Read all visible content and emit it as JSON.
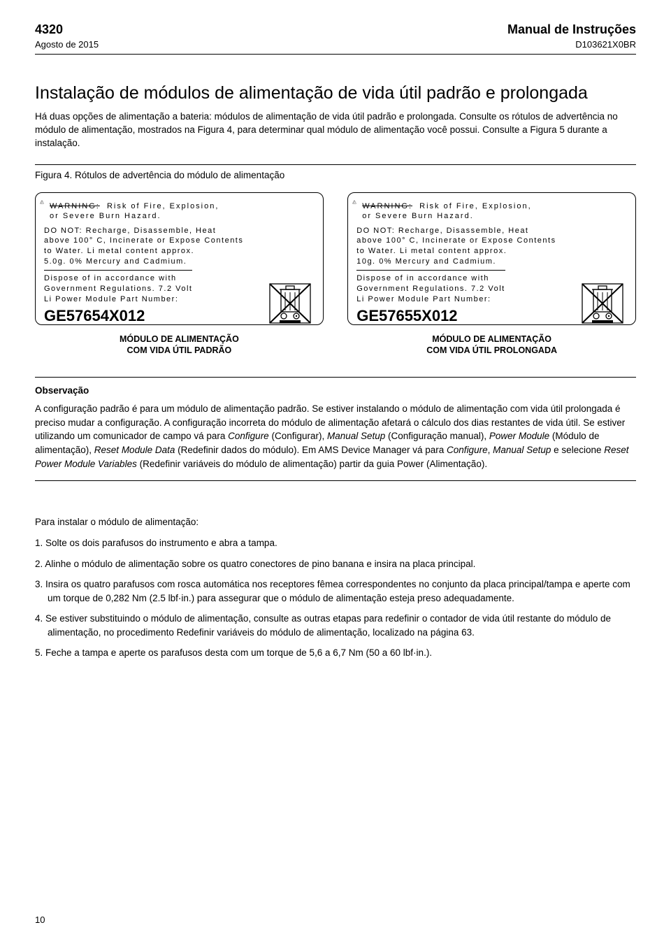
{
  "header": {
    "model": "4320",
    "date": "Agosto de 2015",
    "manual_title": "Manual de Instruções",
    "doc_id": "D103621X0BR"
  },
  "section_title": "Instalação de módulos de alimentação de vida útil padrão e prolongada",
  "intro_p1": "Há duas opções de alimentação a bateria: módulos de alimentação de vida útil padrão e prolongada. Consulte os rótulos de advertência no módulo de alimentação, mostrados na Figura 4, para determinar qual módulo de alimentação você possui. Consulte a Figura 5 durante a instalação.",
  "figure_caption": "Figura 4. Rótulos de advertência do módulo de alimentação",
  "label_common": {
    "warning_word": "WARNING:",
    "risk_line1": "Risk of Fire, Explosion,",
    "risk_line2": "or Severe Burn Hazard.",
    "donot_line1": "DO NOT: Recharge, Disassemble, Heat",
    "donot_line2": "above 100° C, Incinerate or Expose Contents",
    "donot_line3": "to Water. Li metal content approx.",
    "mercury": "0% Mercury and Cadmium.",
    "dispose_line1": "Dispose of in accordance with",
    "dispose_line2": "Government Regulations. 7.2 Volt",
    "dispose_line3": "Li Power Module Part Number:"
  },
  "label_left": {
    "weight": "5.0g.",
    "part": "GE57654X012",
    "subtitle_l1": "MÓDULO DE ALIMENTAÇÃO",
    "subtitle_l2": "COM VIDA ÚTIL PADRÃO"
  },
  "label_right": {
    "weight": "10g.",
    "part": "GE57655X012",
    "subtitle_l1": "MÓDULO DE ALIMENTAÇÃO",
    "subtitle_l2": "COM VIDA ÚTIL PROLONGADA"
  },
  "note": {
    "title": "Observação",
    "text_parts": [
      "A configuração padrão é para um módulo de alimentação padrão. Se estiver instalando o módulo de alimentação com vida útil prolongada é preciso mudar a configuração. A configuração incorreta do módulo de alimentação afetará o cálculo dos dias restantes de vida útil. Se estiver utilizando um comunicador de campo vá para ",
      "Configure",
      " (Configurar), ",
      "Manual Setup",
      " (Configuração manual), ",
      "Power Module",
      " (Módulo de alimentação), ",
      "Reset Module Data",
      " (Redefinir dados do módulo). Em AMS Device Manager vá para ",
      "Configure",
      ", ",
      "Manual Setup",
      " e selecione ",
      "Reset Power Module Variables",
      " (Redefinir variáveis do módulo de alimentação) partir da guia Power (Alimentação)."
    ]
  },
  "install_intro": "Para instalar o módulo de alimentação:",
  "steps": [
    "1.  Solte os dois parafusos do instrumento e abra a tampa.",
    "2.  Alinhe o módulo de alimentação sobre os quatro conectores de pino banana e insira na placa principal.",
    "3.  Insira os quatro parafusos com rosca automática nos receptores fêmea correspondentes no conjunto da placa principal/tampa e aperte com um torque de 0,282 Nm (2.5 lbf·in.) para assegurar que o módulo de alimentação esteja preso adequadamente.",
    "4.  Se estiver substituindo o módulo de alimentação, consulte as outras etapas para redefinir o contador de vida útil restante do módulo de alimentação, no procedimento Redefinir variáveis do módulo de alimentação, localizado na página 63.",
    "5.  Feche a tampa e aperte os parafusos desta com um torque de 5,6 a 6,7 Nm (50 a 60 lbf·in.)."
  ],
  "page_number": "10"
}
